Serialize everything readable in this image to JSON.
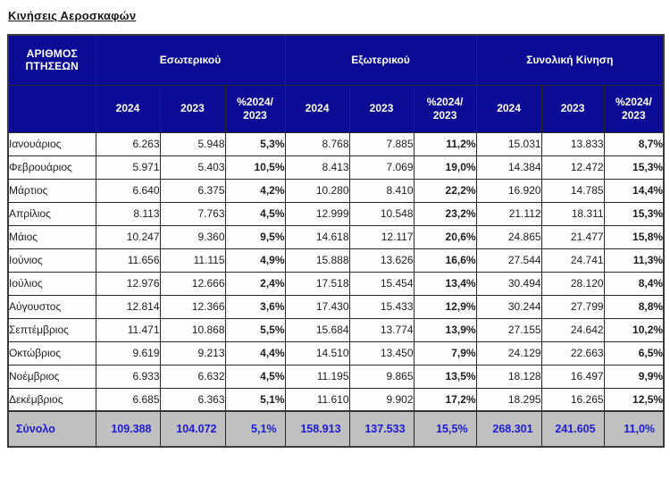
{
  "page": {
    "title": "Κινήσεις Αεροσκαφών"
  },
  "colors": {
    "header_background": "#0b0b96",
    "header_text": "#ffffff",
    "total_row_background": "#c0c0c0",
    "total_row_text": "#1c1cd8",
    "border": "#2a2a2a",
    "data_text": "#1c1c1c"
  },
  "table": {
    "corner_header": "ΑΡΙΘΜΟΣ ΠΤΗΣΕΩΝ",
    "groups": [
      {
        "label": "Εσωτερικού"
      },
      {
        "label": "Εξωτερικού"
      },
      {
        "label": "Συνολική Κίνηση"
      }
    ],
    "sub_headers": [
      "2024",
      "2023",
      "%2024/ 2023"
    ],
    "rows": [
      {
        "month": "Ιανουάριος",
        "cells": [
          "6.263",
          "5.948",
          "5,3%",
          "8.768",
          "7.885",
          "11,2%",
          "15.031",
          "13.833",
          "8,7%"
        ]
      },
      {
        "month": "Φεβρουάριος",
        "cells": [
          "5.971",
          "5.403",
          "10,5%",
          "8.413",
          "7.069",
          "19,0%",
          "14.384",
          "12.472",
          "15,3%"
        ]
      },
      {
        "month": "Μάρτιος",
        "cells": [
          "6.640",
          "6.375",
          "4,2%",
          "10.280",
          "8.410",
          "22,2%",
          "16.920",
          "14.785",
          "14,4%"
        ]
      },
      {
        "month": "Απρίλιος",
        "cells": [
          "8.113",
          "7.763",
          "4,5%",
          "12.999",
          "10.548",
          "23,2%",
          "21.112",
          "18.311",
          "15,3%"
        ]
      },
      {
        "month": "Μάιος",
        "cells": [
          "10.247",
          "9.360",
          "9,5%",
          "14.618",
          "12.117",
          "20,6%",
          "24.865",
          "21.477",
          "15,8%"
        ]
      },
      {
        "month": "Ιούνιος",
        "cells": [
          "11.656",
          "11.115",
          "4,9%",
          "15.888",
          "13.626",
          "16,6%",
          "27.544",
          "24.741",
          "11,3%"
        ]
      },
      {
        "month": "Ιούλιος",
        "cells": [
          "12.976",
          "12.666",
          "2,4%",
          "17.518",
          "15.454",
          "13,4%",
          "30.494",
          "28.120",
          "8,4%"
        ]
      },
      {
        "month": "Αύγουστος",
        "cells": [
          "12.814",
          "12.366",
          "3,6%",
          "17.430",
          "15.433",
          "12,9%",
          "30.244",
          "27.799",
          "8,8%"
        ]
      },
      {
        "month": "Σεπτέμβριος",
        "cells": [
          "11.471",
          "10.868",
          "5,5%",
          "15.684",
          "13.774",
          "13,9%",
          "27.155",
          "24.642",
          "10,2%"
        ]
      },
      {
        "month": "Οκτώβριος",
        "cells": [
          "9.619",
          "9.213",
          "4,4%",
          "14.510",
          "13.450",
          "7,9%",
          "24.129",
          "22.663",
          "6,5%"
        ]
      },
      {
        "month": "Νοέμβριος",
        "cells": [
          "6.933",
          "6.632",
          "4,5%",
          "11.195",
          "9.865",
          "13,5%",
          "18.128",
          "16.497",
          "9,9%"
        ]
      },
      {
        "month": "Δεκέμβριος",
        "cells": [
          "6.685",
          "6.363",
          "5,1%",
          "11.610",
          "9.902",
          "17,2%",
          "18.295",
          "16.265",
          "12,5%"
        ]
      }
    ],
    "total_row": {
      "label": "Σύνολο",
      "cells": [
        "109.388",
        "104.072",
        "5,1%",
        "158.913",
        "137.533",
        "15,5%",
        "268.301",
        "241.605",
        "11,0%"
      ]
    }
  }
}
